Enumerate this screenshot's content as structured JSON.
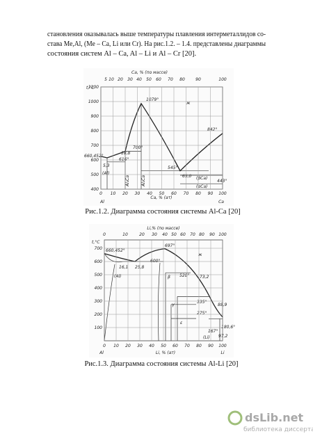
{
  "text_lines": [
    "становления оказывалась выше температуры плавления интерметаллидов со-",
    "става Me,Al, (Me – Ca, Li или Cr). На рис.1.2. – 1.4. представлены диаграммы",
    "состояния систем  Al – Ca, Al – Li и Al – Cr [20]."
  ],
  "figures": [
    {
      "top_axis_label": "Ca, % (по массе)",
      "top_ticks": [
        5,
        10,
        20,
        30,
        40,
        50,
        60,
        70,
        80,
        90,
        100
      ],
      "y_axis_label": "t,°C",
      "y_ticks": [
        400,
        500,
        600,
        700,
        800,
        900,
        1000,
        1100
      ],
      "bottom_ticks": [
        0,
        10,
        20,
        30,
        40,
        50,
        60,
        70,
        80,
        90,
        100
      ],
      "bottom_axis_label": "Ca, % (ат)",
      "ends": [
        "Al",
        "Ca"
      ],
      "annotations": [
        "1079°",
        "842°",
        "660,452°",
        "5,3",
        "(Al)",
        "18,8",
        "616°",
        "700°",
        "545°",
        "65,0",
        "ж",
        "(βCa)",
        "(αCa)",
        "443°",
        "Al₄Ca",
        "Al₂Ca"
      ],
      "caption": "Рис.1.2. Диаграмма состояния системы Al-Ca [20]"
    },
    {
      "top_axis_label": "Li,% (по массе)",
      "top_ticks": [
        0,
        10,
        20,
        30,
        40,
        50,
        60,
        70,
        80,
        90,
        100
      ],
      "y_axis_label": "t,°C",
      "y_ticks": [
        100,
        200,
        300,
        400,
        500,
        600,
        700
      ],
      "bottom_ticks": [
        0,
        10,
        20,
        30,
        40,
        50,
        60,
        70,
        80,
        90,
        100
      ],
      "bottom_axis_label": "Li, % (ат)",
      "ends": [
        "Al",
        "Li"
      ],
      "annotations": [
        "660,452°",
        "16,1",
        "25,8",
        "(Al)",
        "600°",
        "697°",
        "520°",
        "73,2",
        "ж",
        "β",
        "γ",
        "ε",
        "335°",
        "88,9",
        "275°",
        "167°",
        "180,6°",
        "97,2",
        "(Li)"
      ],
      "caption": "Рис.1.3. Диаграмма состояния системы Al-Li [20]"
    }
  ],
  "watermark": {
    "brand": "dsLib.net",
    "subtitle": "библиотека диссертаций"
  }
}
